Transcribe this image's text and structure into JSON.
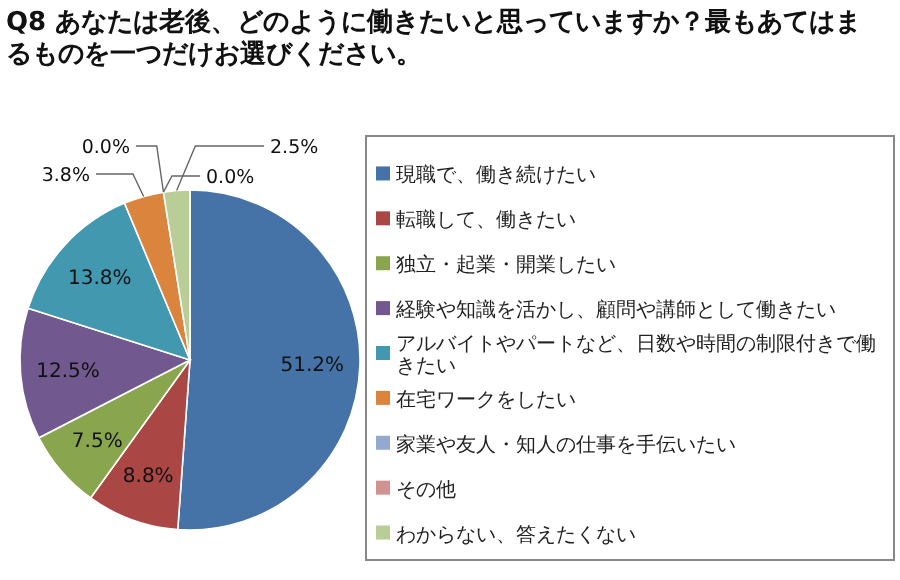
{
  "chart_data": {
    "type": "pie",
    "title": "Q8 あなたは老後、どのように働きたいと思っていますか？最もあてはまるものを一つだけお選びください。",
    "categories": [
      "現職で、働き続けたい",
      "転職して、働きたい",
      "独立・起業・開業したい",
      "経験や知識を活かし、顧問や講師として働きたい",
      "アルバイトやパートなど、日数や時間の制限付きで働きたい",
      "在宅ワークをしたい",
      "家業や友人・知人の仕事を手伝いたい",
      "その他",
      "わからない、答えたくない"
    ],
    "values": [
      51.2,
      8.8,
      7.5,
      12.5,
      13.8,
      3.8,
      0.0,
      0.0,
      2.5
    ],
    "value_labels": [
      "51.2%",
      "8.8%",
      "7.5%",
      "12.5%",
      "13.8%",
      "3.8%",
      "0.0%",
      "0.0%",
      "2.5%"
    ],
    "colors": [
      "#4572a7",
      "#aa4643",
      "#89a54e",
      "#71588f",
      "#4198af",
      "#db843d",
      "#93a9cf",
      "#d19392",
      "#b9cd96"
    ],
    "legend": "right"
  }
}
